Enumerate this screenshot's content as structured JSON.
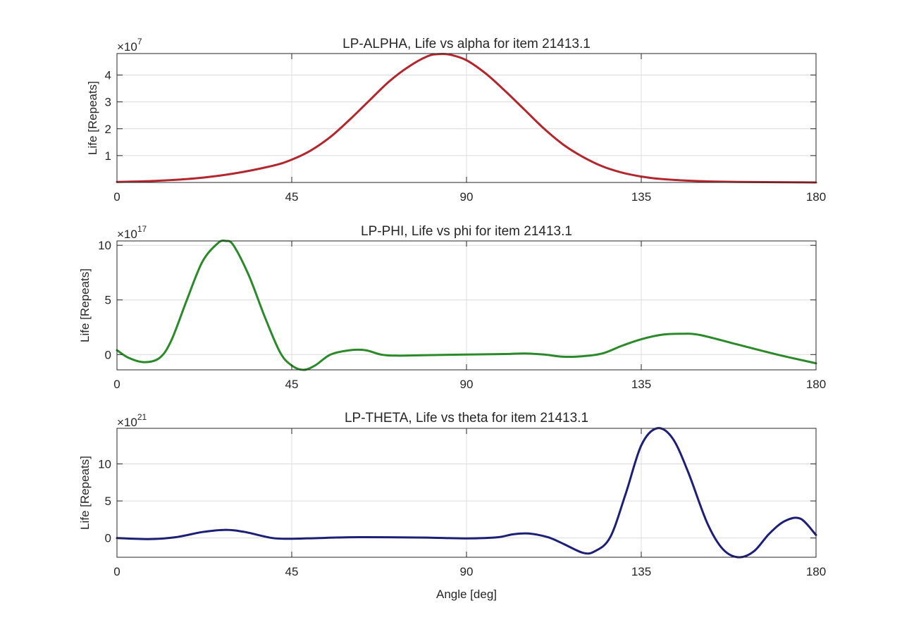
{
  "chart_data": [
    {
      "type": "line",
      "title": "LP-ALPHA, Life vs alpha for item 21413.1",
      "xlabel": "",
      "ylabel": "Life [Repeats]",
      "y_exponent": "7",
      "xlim": [
        0,
        180
      ],
      "ylim": [
        0,
        4.8
      ],
      "xticks": [
        0,
        45,
        90,
        135,
        180
      ],
      "yticks": [
        1,
        2,
        3,
        4
      ],
      "grid": true,
      "color": "#b2272d",
      "series": [
        {
          "x": [
            0,
            10,
            20,
            30,
            40,
            45,
            50,
            55,
            60,
            65,
            70,
            75,
            80,
            83,
            86,
            90,
            95,
            100,
            105,
            110,
            115,
            120,
            125,
            130,
            135,
            140,
            150,
            160,
            170,
            180
          ],
          "y": [
            0.02,
            0.06,
            0.15,
            0.33,
            0.62,
            0.85,
            1.2,
            1.7,
            2.35,
            3.05,
            3.75,
            4.3,
            4.7,
            4.78,
            4.75,
            4.55,
            4.05,
            3.4,
            2.7,
            2.0,
            1.4,
            0.95,
            0.6,
            0.37,
            0.22,
            0.13,
            0.05,
            0.02,
            0.01,
            0.0
          ]
        }
      ]
    },
    {
      "type": "line",
      "title": "LP-PHI, Life vs phi for item 21413.1",
      "xlabel": "",
      "ylabel": "Life [Repeats]",
      "y_exponent": "17",
      "xlim": [
        0,
        180
      ],
      "ylim": [
        -1.4,
        10.4
      ],
      "xticks": [
        0,
        45,
        90,
        135,
        180
      ],
      "yticks": [
        0,
        5,
        10
      ],
      "grid": true,
      "color": "#2a8a2a",
      "series": [
        {
          "x": [
            0,
            3,
            7,
            11,
            14,
            18,
            22,
            26,
            28,
            30,
            34,
            38,
            42,
            45,
            48,
            51,
            55,
            60,
            64,
            68,
            72,
            80,
            90,
            100,
            105,
            110,
            115,
            120,
            125,
            130,
            135,
            140,
            145,
            150,
            160,
            170,
            180
          ],
          "y": [
            0.4,
            -0.3,
            -0.7,
            -0.3,
            1.3,
            5.0,
            8.5,
            10.2,
            10.4,
            10.0,
            7.2,
            3.5,
            0.2,
            -1.0,
            -1.4,
            -1.0,
            0.0,
            0.4,
            0.4,
            0.0,
            -0.1,
            -0.05,
            0.0,
            0.05,
            0.1,
            0.0,
            -0.2,
            -0.15,
            0.1,
            0.8,
            1.4,
            1.8,
            1.9,
            1.8,
            0.9,
            0.0,
            -0.8
          ]
        }
      ]
    },
    {
      "type": "line",
      "title": "LP-THETA, Life vs theta for item 21413.1",
      "xlabel": "Angle [deg]",
      "ylabel": "Life [Repeats]",
      "y_exponent": "21",
      "xlim": [
        0,
        180
      ],
      "ylim": [
        -2.6,
        14.8
      ],
      "xticks": [
        0,
        45,
        90,
        135,
        180
      ],
      "yticks": [
        0,
        5,
        10
      ],
      "grid": true,
      "color": "#1c1f75",
      "series": [
        {
          "x": [
            0,
            8,
            15,
            22,
            28,
            33,
            40,
            45,
            52,
            60,
            70,
            80,
            90,
            98,
            102,
            106,
            111,
            115,
            120,
            123,
            127,
            131,
            135,
            139,
            143,
            147,
            152,
            156,
            160,
            164,
            168,
            172,
            176,
            180
          ],
          "y": [
            0.0,
            -0.15,
            0.1,
            0.8,
            1.1,
            0.8,
            0.0,
            -0.1,
            0.0,
            0.1,
            0.1,
            0.05,
            -0.05,
            0.1,
            0.5,
            0.6,
            0.1,
            -0.8,
            -2.0,
            -1.8,
            0.1,
            6.0,
            12.5,
            14.8,
            13.5,
            9.0,
            2.0,
            -1.5,
            -2.6,
            -1.8,
            0.6,
            2.3,
            2.6,
            0.4
          ]
        }
      ]
    }
  ]
}
